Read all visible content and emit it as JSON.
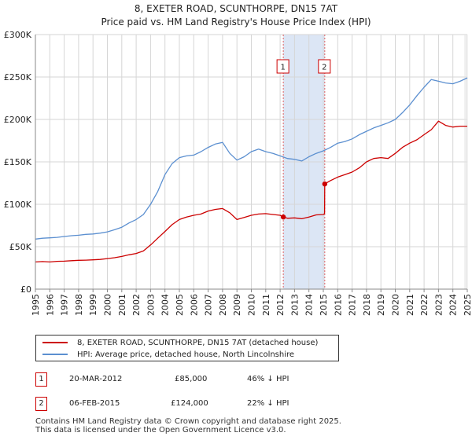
{
  "header": {
    "title": "8, EXETER ROAD, SCUNTHORPE, DN15 7AT",
    "subtitle": "Price paid vs. HM Land Registry's House Price Index (HPI)"
  },
  "colors": {
    "property": "#cc0000",
    "hpi": "#5b8fd0",
    "shade": "#dce6f5",
    "grid": "#d6d6d6"
  },
  "chart_data": {
    "type": "line",
    "title": "8, EXETER ROAD, SCUNTHORPE, DN15 7AT",
    "subtitle": "Price paid vs. HM Land Registry's House Price Index (HPI)",
    "xlabel": "",
    "ylabel": "",
    "xlim": [
      1995,
      2025
    ],
    "ylim": [
      0,
      300000
    ],
    "grid": true,
    "legend_position": "bottom",
    "y_ticks": [
      {
        "value": 0,
        "label": "£0"
      },
      {
        "value": 50000,
        "label": "£50K"
      },
      {
        "value": 100000,
        "label": "£100K"
      },
      {
        "value": 150000,
        "label": "£150K"
      },
      {
        "value": 200000,
        "label": "£200K"
      },
      {
        "value": 250000,
        "label": "£250K"
      },
      {
        "value": 300000,
        "label": "£300K"
      }
    ],
    "x_ticks": [
      "1995",
      "1996",
      "1997",
      "1998",
      "1999",
      "2000",
      "2001",
      "2002",
      "2003",
      "2004",
      "2005",
      "2006",
      "2007",
      "2008",
      "2009",
      "2010",
      "2011",
      "2012",
      "2013",
      "2014",
      "2015",
      "2016",
      "2017",
      "2018",
      "2019",
      "2020",
      "2021",
      "2022",
      "2023",
      "2024",
      "2025"
    ],
    "shaded_region": [
      2012.22,
      2015.1
    ],
    "series": [
      {
        "name": "8, EXETER ROAD, SCUNTHORPE, DN15 7AT (detached house)",
        "color": "#cc0000",
        "x": [
          1995,
          1995.5,
          1996,
          1996.5,
          1997,
          1997.5,
          1998,
          1998.5,
          1999,
          1999.5,
          2000,
          2000.5,
          2001,
          2001.5,
          2002,
          2002.5,
          2003,
          2003.5,
          2004,
          2004.5,
          2005,
          2005.5,
          2006,
          2006.5,
          2007,
          2007.5,
          2008,
          2008.5,
          2009,
          2009.5,
          2010,
          2010.5,
          2011,
          2011.5,
          2012,
          2012.22,
          2012.5,
          2013,
          2013.5,
          2014,
          2014.5,
          2015,
          2015.09,
          2015.1,
          2015.5,
          2016,
          2016.5,
          2017,
          2017.5,
          2018,
          2018.5,
          2019,
          2019.5,
          2020,
          2020.5,
          2021,
          2021.5,
          2022,
          2022.5,
          2023,
          2023.5,
          2024,
          2024.5,
          2025
        ],
        "y": [
          32000,
          32500,
          32000,
          32800,
          33000,
          33500,
          34000,
          34200,
          34500,
          35000,
          36000,
          37000,
          38500,
          40500,
          42000,
          45000,
          52000,
          60000,
          68000,
          76000,
          82000,
          85000,
          87000,
          88500,
          92000,
          94000,
          95000,
          90000,
          82000,
          84500,
          87000,
          88500,
          89000,
          88000,
          87000,
          85000,
          83500,
          84000,
          83000,
          85000,
          87500,
          88000,
          89000,
          124000,
          128000,
          132000,
          135000,
          138000,
          143000,
          150000,
          154000,
          155000,
          154000,
          160000,
          167000,
          172000,
          176000,
          182000,
          188000,
          198000,
          193000,
          191000,
          192000,
          192000
        ]
      },
      {
        "name": "HPI: Average price, detached house, North Lincolnshire",
        "color": "#5b8fd0",
        "x": [
          1995,
          1995.5,
          1996,
          1996.5,
          1997,
          1997.5,
          1998,
          1998.5,
          1999,
          1999.5,
          2000,
          2000.5,
          2001,
          2001.5,
          2002,
          2002.5,
          2003,
          2003.5,
          2004,
          2004.5,
          2005,
          2005.5,
          2006,
          2006.5,
          2007,
          2007.5,
          2008,
          2008.5,
          2009,
          2009.5,
          2010,
          2010.5,
          2011,
          2011.5,
          2012,
          2012.5,
          2013,
          2013.5,
          2014,
          2014.5,
          2015,
          2015.5,
          2016,
          2016.5,
          2017,
          2017.5,
          2018,
          2018.5,
          2019,
          2019.5,
          2020,
          2020.5,
          2021,
          2021.5,
          2022,
          2022.5,
          2023,
          2023.5,
          2024,
          2024.5,
          2025
        ],
        "y": [
          59000,
          60000,
          60500,
          61000,
          62000,
          63000,
          63500,
          64500,
          65000,
          66000,
          67500,
          70000,
          73000,
          78000,
          82000,
          88000,
          100000,
          115000,
          135000,
          148000,
          155000,
          157000,
          158000,
          162000,
          167000,
          171000,
          173000,
          160000,
          152000,
          156000,
          162000,
          165000,
          162000,
          160000,
          157000,
          154000,
          153000,
          151000,
          156000,
          160000,
          163000,
          167000,
          172000,
          174000,
          177000,
          182000,
          186000,
          190000,
          193000,
          196000,
          200000,
          208000,
          217000,
          228000,
          238000,
          247000,
          245000,
          243000,
          242000,
          245000,
          249000
        ]
      }
    ],
    "transactions": [
      {
        "marker": "1",
        "x": 2012.22,
        "y": 85000
      },
      {
        "marker": "2",
        "x": 2015.1,
        "y": 124000
      }
    ]
  },
  "legend": {
    "property_label": "8, EXETER ROAD, SCUNTHORPE, DN15 7AT (detached house)",
    "hpi_label": "HPI: Average price, detached house, North Lincolnshire"
  },
  "table": [
    {
      "marker": "1",
      "date": "20-MAR-2012",
      "price": "£85,000",
      "hpi_change": "46% ↓ HPI"
    },
    {
      "marker": "2",
      "date": "06-FEB-2015",
      "price": "£124,000",
      "hpi_change": "22% ↓ HPI"
    }
  ],
  "footer": {
    "line1": "Contains HM Land Registry data © Crown copyright and database right 2025.",
    "line2": "This data is licensed under the Open Government Licence v3.0."
  }
}
